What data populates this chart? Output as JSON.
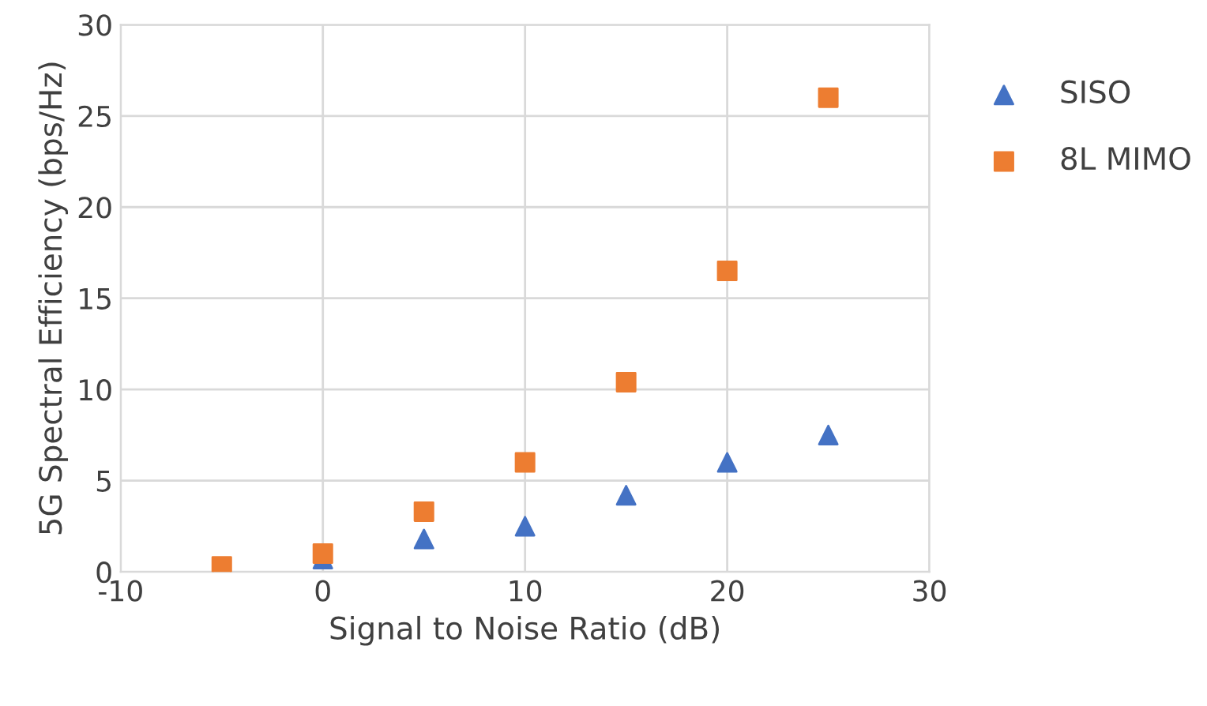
{
  "chart_data": {
    "type": "scatter",
    "xlabel": "Signal to Noise Ratio (dB)",
    "ylabel": "5G Spectral Efficiency (bps/Hz)",
    "x": [
      -5,
      0,
      5,
      10,
      15,
      20,
      25
    ],
    "series": [
      {
        "name": "SISO",
        "color": "#4472c4",
        "marker": "triangle",
        "values": [
          null,
          0.7,
          1.8,
          2.5,
          4.2,
          6.0,
          7.5
        ]
      },
      {
        "name": "8L MIMO",
        "color": "#ed7d31",
        "marker": "square",
        "values": [
          0.3,
          1.0,
          3.3,
          6.0,
          10.4,
          16.5,
          26.0
        ]
      }
    ],
    "xlim": [
      -10,
      30
    ],
    "xticks": [
      -10,
      0,
      10,
      20,
      30
    ],
    "ylim": [
      0,
      30
    ],
    "yticks": [
      0,
      5,
      10,
      15,
      20,
      25,
      30
    ],
    "grid": true,
    "legend": "right"
  }
}
